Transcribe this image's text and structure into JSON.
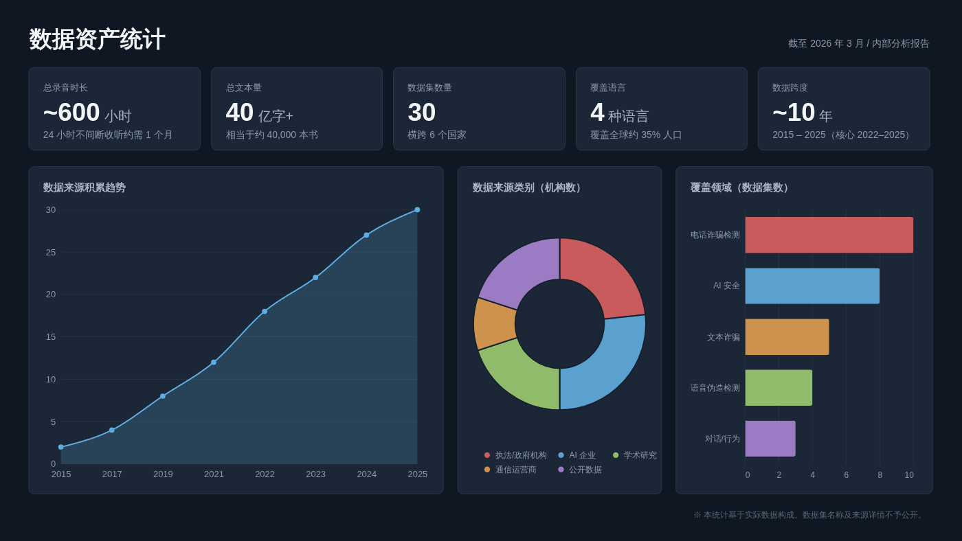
{
  "chart_data": [
    {
      "type": "other",
      "title": "数据资产统计",
      "subtitle": "截至 2026 年 3 月 / 内部分析报告"
    },
    {
      "type": "other",
      "title": "总录音时长",
      "annotations": [
        "~600",
        "小时",
        "24 小时不间断收听约需 1 个月"
      ]
    },
    {
      "type": "other",
      "title": "总文本量",
      "annotations": [
        "40",
        "亿字+",
        "相当于约 40,000 本书"
      ]
    },
    {
      "type": "other",
      "title": "数据集数量",
      "annotations": [
        "30",
        "横跨 6 个国家"
      ]
    },
    {
      "type": "other",
      "title": "覆盖语言",
      "annotations": [
        "4",
        "种语言",
        "覆盖全球约 35% 人口"
      ]
    },
    {
      "type": "other",
      "title": "数据跨度",
      "annotations": [
        "~10",
        "年",
        "2015 – 2025（核心 2022–2025）"
      ]
    },
    {
      "type": "area",
      "title": "数据来源积累趋势",
      "categories": [
        "2015",
        "2017",
        "2019",
        "2021",
        "2022",
        "2023",
        "2024",
        "2025"
      ],
      "values": [
        2,
        4,
        8,
        12,
        18,
        22,
        27,
        30
      ],
      "color": "#5dade2",
      "marker": "circle",
      "ylim": [
        0,
        30
      ],
      "yticks": [
        0,
        5,
        10,
        15,
        20,
        25,
        30
      ],
      "grid": "y"
    },
    {
      "type": "donut",
      "title": "数据来源类别（机构数）",
      "categories": [
        "执法/政府机构",
        "AI 企业",
        "学术研究",
        "通信运营商",
        "公开数据"
      ],
      "values": [
        23.3,
        26.7,
        20,
        10,
        20
      ],
      "colors": [
        "#c95b5c",
        "#5aa1d0",
        "#8fbb6b",
        "#cf924d",
        "#9b7cc4"
      ],
      "legend": "bottom"
    },
    {
      "type": "bar",
      "orientation": "horizontal",
      "title": "覆盖领域（数据集数）",
      "categories": [
        "电话诈骗检测",
        "AI 安全",
        "文本诈骗",
        "语音伪造检测",
        "对话/行为"
      ],
      "values": [
        10,
        8,
        5,
        4,
        3
      ],
      "colors": [
        "#c95b5c",
        "#5aa1d0",
        "#cf924d",
        "#8fbb6b",
        "#9b7cc4"
      ],
      "xlim": [
        0,
        10
      ],
      "xticks": [
        0,
        2,
        4,
        6,
        8,
        10
      ],
      "grid": "x"
    },
    {
      "type": "other",
      "annotations": [
        "※ 本统计基于实际数据构成。数据集名称及来源详情不予公开。"
      ]
    }
  ]
}
